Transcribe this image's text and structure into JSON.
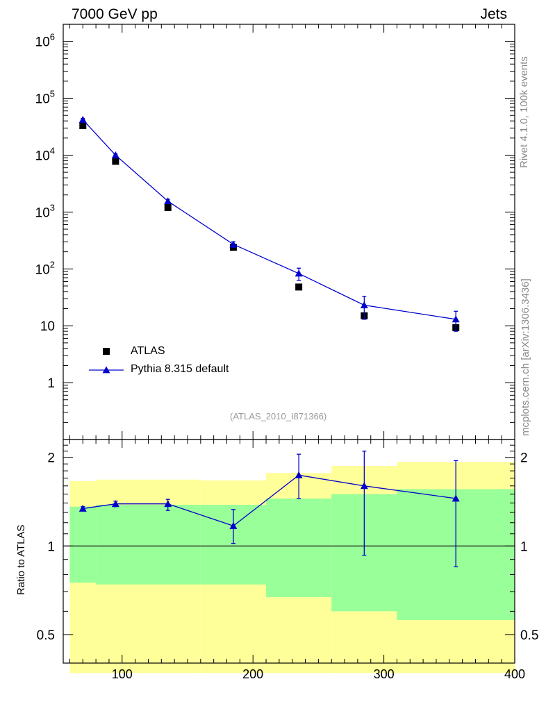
{
  "header": {
    "left": "7000 GeV pp",
    "right": "Jets"
  },
  "side": {
    "rivet": "Rivet 4.1.0,  100k events",
    "mcplots": "mcplots.cern.ch [arXiv:1306.3436]"
  },
  "analysis_id": "(ATLAS_2010_I871366)",
  "legend": {
    "data_label": "ATLAS",
    "mc_label": "Pythia 8.315 default"
  },
  "ratio_ylabel": "Ratio to ATLAS",
  "colors": {
    "mc": "#0000cc",
    "data": "#000000",
    "band_inner": "#99ff99",
    "band_outer": "#ffff99"
  },
  "chart_data": [
    {
      "type": "scatter",
      "scale": "log",
      "xlim": [
        55,
        400
      ],
      "ylim": [
        0.1,
        2000000
      ],
      "x_ticks": [
        100,
        200,
        300,
        400
      ],
      "y_tick_labels": [
        "1",
        "10",
        "10^2",
        "10^3",
        "10^4",
        "10^5",
        "10^6"
      ],
      "series": [
        {
          "name": "ATLAS",
          "marker": "square",
          "x": [
            70,
            95,
            135,
            185,
            235,
            285,
            355
          ],
          "y": [
            33000,
            7800,
            1200,
            240,
            48,
            15,
            9.3
          ]
        },
        {
          "name": "Pythia 8.315 default",
          "marker": "triangle",
          "line": true,
          "x": [
            70,
            95,
            135,
            185,
            235,
            285,
            355
          ],
          "y": [
            42000,
            10000,
            1550,
            270,
            83,
            23,
            13
          ],
          "yerr": [
            2000,
            500,
            120,
            30,
            20,
            10,
            5
          ]
        }
      ]
    },
    {
      "type": "ratio",
      "scale": "log",
      "xlim": [
        55,
        400
      ],
      "ylim": [
        0.4,
        2.3
      ],
      "y_ticks": [
        0.5,
        1,
        2
      ],
      "reference": 1,
      "bands": [
        {
          "x_low": 60,
          "x_high": 80,
          "inner": [
            0.75,
            1.36
          ],
          "outer": [
            0.37,
            1.66
          ]
        },
        {
          "x_low": 80,
          "x_high": 160,
          "inner": [
            0.74,
            1.38
          ],
          "outer": [
            0.37,
            1.68
          ]
        },
        {
          "x_low": 160,
          "x_high": 210,
          "inner": [
            0.74,
            1.38
          ],
          "outer": [
            0.37,
            1.67
          ]
        },
        {
          "x_low": 210,
          "x_high": 260,
          "inner": [
            0.67,
            1.45
          ],
          "outer": [
            0.37,
            1.77
          ]
        },
        {
          "x_low": 260,
          "x_high": 310,
          "inner": [
            0.6,
            1.5
          ],
          "outer": [
            0.37,
            1.87
          ]
        },
        {
          "x_low": 310,
          "x_high": 400,
          "inner": [
            0.56,
            1.56
          ],
          "outer": [
            0.37,
            1.93
          ]
        }
      ],
      "series": [
        {
          "name": "Pythia 8.315 default",
          "marker": "triangle",
          "line": true,
          "x": [
            70,
            95,
            135,
            185,
            235,
            285,
            355
          ],
          "y": [
            1.34,
            1.39,
            1.39,
            1.17,
            1.74,
            1.6,
            1.45
          ],
          "ylo": [
            1.32,
            1.36,
            1.32,
            1.02,
            1.45,
            0.93,
            0.85
          ],
          "yhi": [
            1.36,
            1.42,
            1.44,
            1.33,
            2.05,
            2.1,
            1.95
          ]
        }
      ]
    }
  ]
}
